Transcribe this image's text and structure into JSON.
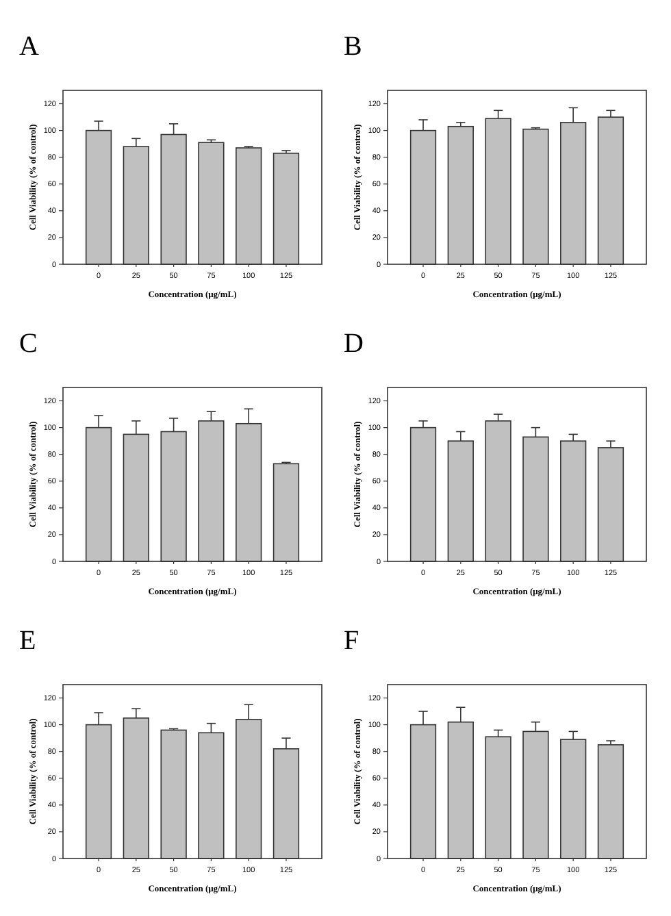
{
  "chart_data": [
    {
      "type": "bar",
      "title": "A",
      "xlabel": "Concentration (μg/mL)",
      "ylabel": "Cell Viability (% of control)",
      "categories": [
        "0",
        "25",
        "50",
        "75",
        "100",
        "125"
      ],
      "values": [
        100,
        88,
        97,
        91,
        87,
        83
      ],
      "errors": [
        [
          100,
          107
        ],
        [
          88,
          94
        ],
        [
          97,
          105
        ],
        [
          91,
          93
        ],
        [
          87,
          88
        ],
        [
          83,
          85
        ]
      ],
      "color": "#c0c0c0",
      "ylim": [
        0,
        130
      ],
      "yticks": [
        0,
        20,
        40,
        60,
        80,
        100,
        120
      ]
    },
    {
      "type": "bar",
      "title": "B",
      "xlabel": "Concentration (μg/mL)",
      "ylabel": "Cell Viability (% of control)",
      "categories": [
        "0",
        "25",
        "50",
        "75",
        "100",
        "125"
      ],
      "values": [
        100,
        103,
        109,
        101,
        106,
        110
      ],
      "errors": [
        [
          100,
          108
        ],
        [
          103,
          106
        ],
        [
          109,
          115
        ],
        [
          101,
          102
        ],
        [
          106,
          117
        ],
        [
          110,
          115
        ]
      ],
      "color": "#c0c0c0",
      "ylim": [
        0,
        130
      ],
      "yticks": [
        0,
        20,
        40,
        60,
        80,
        100,
        120
      ]
    },
    {
      "type": "bar",
      "title": "C",
      "xlabel": "Concentration (μg/mL)",
      "ylabel": "Cell Viability (% of control)",
      "categories": [
        "0",
        "25",
        "50",
        "75",
        "100",
        "125"
      ],
      "values": [
        100,
        95,
        97,
        105,
        103,
        73
      ],
      "errors": [
        [
          100,
          109
        ],
        [
          95,
          105
        ],
        [
          97,
          107
        ],
        [
          105,
          112
        ],
        [
          103,
          114
        ],
        [
          73,
          74
        ]
      ],
      "color": "#c0c0c0",
      "ylim": [
        0,
        130
      ],
      "yticks": [
        0,
        20,
        40,
        60,
        80,
        100,
        120
      ]
    },
    {
      "type": "bar",
      "title": "D",
      "xlabel": "Concentration (μg/mL)",
      "ylabel": "Cell Viability (% of control)",
      "categories": [
        "0",
        "25",
        "50",
        "75",
        "100",
        "125"
      ],
      "values": [
        100,
        90,
        105,
        93,
        90,
        85
      ],
      "errors": [
        [
          100,
          105
        ],
        [
          90,
          97
        ],
        [
          105,
          110
        ],
        [
          93,
          100
        ],
        [
          90,
          95
        ],
        [
          85,
          90
        ]
      ],
      "color": "#c0c0c0",
      "ylim": [
        0,
        130
      ],
      "yticks": [
        0,
        20,
        40,
        60,
        80,
        100,
        120
      ]
    },
    {
      "type": "bar",
      "title": "E",
      "xlabel": "Concentration (μg/mL)",
      "ylabel": "Cell Viability (% of control)",
      "categories": [
        "0",
        "25",
        "50",
        "75",
        "100",
        "125"
      ],
      "values": [
        100,
        105,
        96,
        94,
        104,
        82
      ],
      "errors": [
        [
          100,
          109
        ],
        [
          105,
          112
        ],
        [
          96,
          97
        ],
        [
          94,
          101
        ],
        [
          104,
          115
        ],
        [
          82,
          90
        ]
      ],
      "color": "#c0c0c0",
      "ylim": [
        0,
        130
      ],
      "yticks": [
        0,
        20,
        40,
        60,
        80,
        100,
        120
      ]
    },
    {
      "type": "bar",
      "title": "F",
      "xlabel": "Concentration (μg/mL)",
      "ylabel": "Cell Viability (% of control)",
      "categories": [
        "0",
        "25",
        "50",
        "75",
        "100",
        "125"
      ],
      "values": [
        100,
        102,
        91,
        95,
        89,
        85
      ],
      "errors": [
        [
          100,
          110
        ],
        [
          102,
          113
        ],
        [
          91,
          96
        ],
        [
          95,
          102
        ],
        [
          89,
          95
        ],
        [
          85,
          88
        ]
      ],
      "color": "#c0c0c0",
      "ylim": [
        0,
        130
      ],
      "yticks": [
        0,
        20,
        40,
        60,
        80,
        100,
        120
      ]
    }
  ]
}
